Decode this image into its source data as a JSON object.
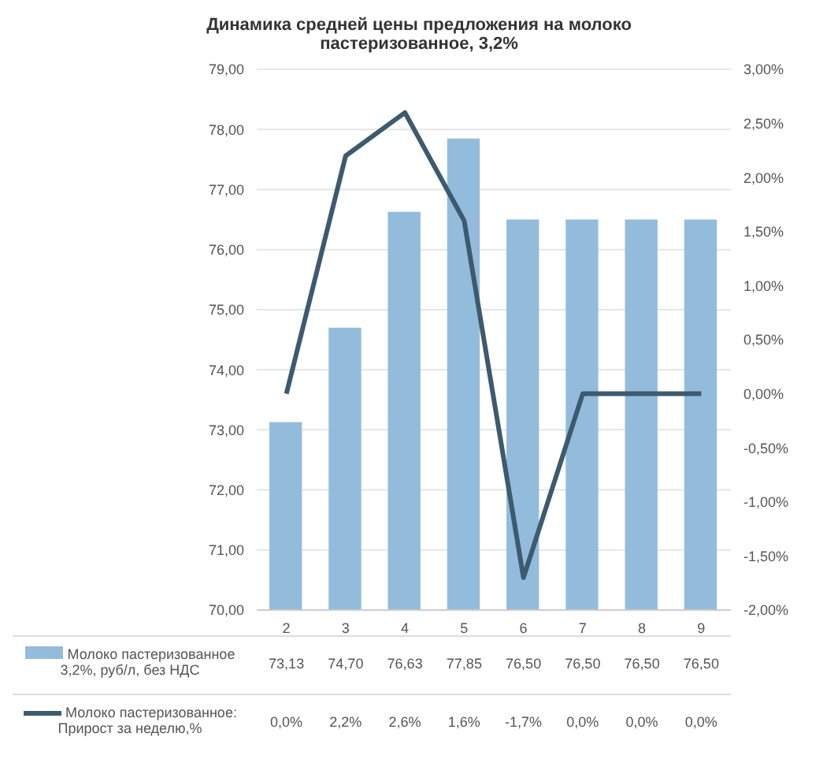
{
  "chart_data": {
    "type": "bar",
    "title": "Динамика средней цены предложения на молоко пастеризованное, 3,2%",
    "categories": [
      "2",
      "3",
      "4",
      "5",
      "6",
      "7",
      "8",
      "9"
    ],
    "series": [
      {
        "name": "Молоко пастеризованное 3,2%, руб/л, без НДС",
        "color": "#93bcdc",
        "values": [
          73.13,
          74.7,
          76.63,
          77.85,
          76.5,
          76.5,
          76.5,
          76.5
        ],
        "value_labels": [
          "73,13",
          "74,70",
          "76,63",
          "77,85",
          "76,50",
          "76,50",
          "76,50",
          "76,50"
        ]
      },
      {
        "type": "line",
        "name": "Молоко пастеризованное: Прирост за неделю,%",
        "color": "#3d5a6e",
        "axis": "y2",
        "values": [
          0.0,
          2.2,
          2.6,
          1.6,
          -1.7,
          0.0,
          0.0,
          0.0
        ],
        "value_labels": [
          "0,0%",
          "2,2%",
          "2,6%",
          "1,6%",
          "-1,7%",
          "0,0%",
          "0,0%",
          "0,0%"
        ]
      }
    ],
    "ylim": [
      70,
      79
    ],
    "yticks": [
      {
        "value": 70,
        "label": "70,00"
      },
      {
        "value": 71,
        "label": "71,00"
      },
      {
        "value": 72,
        "label": "72,00"
      },
      {
        "value": 73,
        "label": "73,00"
      },
      {
        "value": 74,
        "label": "74,00"
      },
      {
        "value": 75,
        "label": "75,00"
      },
      {
        "value": 76,
        "label": "76,00"
      },
      {
        "value": 77,
        "label": "77,00"
      },
      {
        "value": 78,
        "label": "78,00"
      },
      {
        "value": 79,
        "label": "79,00"
      }
    ],
    "y2lim": [
      -2,
      3
    ],
    "y2ticks": [
      {
        "value": -2,
        "label": "-2,00%"
      },
      {
        "value": -1.5,
        "label": "-1,50%"
      },
      {
        "value": -1,
        "label": "-1,00%"
      },
      {
        "value": -0.5,
        "label": "-0,50%"
      },
      {
        "value": 0,
        "label": "0,00%"
      },
      {
        "value": 0.5,
        "label": "0,50%"
      },
      {
        "value": 1,
        "label": "1,00%"
      },
      {
        "value": 1.5,
        "label": "1,50%"
      },
      {
        "value": 2,
        "label": "2,00%"
      },
      {
        "value": 2.5,
        "label": "2,50%"
      },
      {
        "value": 3,
        "label": "3,00%"
      }
    ],
    "grid": "y",
    "legend": "bottom",
    "marker": "none"
  }
}
